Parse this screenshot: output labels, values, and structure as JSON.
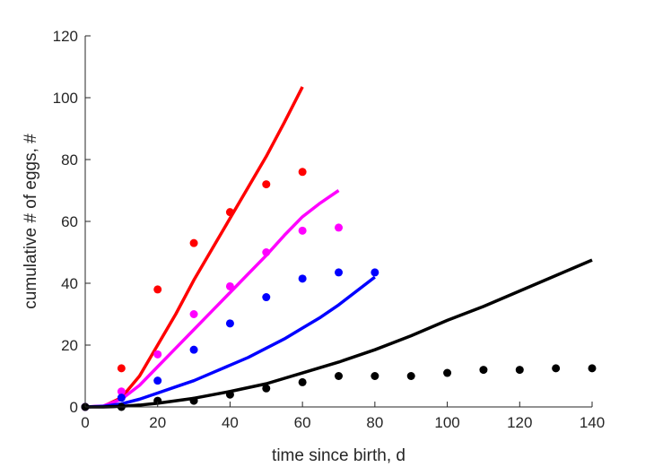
{
  "chart_data": {
    "type": "scatter",
    "title": "",
    "xlabel": "time since birth, d",
    "ylabel": "cumulative # of eggs, #",
    "xlim": [
      0,
      140
    ],
    "ylim": [
      0,
      120
    ],
    "xticks": [
      0,
      20,
      40,
      60,
      80,
      100,
      120,
      140
    ],
    "yticks": [
      0,
      20,
      40,
      60,
      80,
      100,
      120
    ],
    "grid": false,
    "legend": "none",
    "series": [
      {
        "color": "#ff0000",
        "points": [
          [
            0,
            0
          ],
          [
            10,
            12.5
          ],
          [
            20,
            38
          ],
          [
            30,
            53
          ],
          [
            40,
            63
          ],
          [
            50,
            72
          ],
          [
            60,
            76
          ]
        ],
        "curve": [
          [
            0,
            0
          ],
          [
            5,
            0.2
          ],
          [
            10,
            3
          ],
          [
            15,
            10
          ],
          [
            20,
            20
          ],
          [
            25,
            30
          ],
          [
            30,
            41
          ],
          [
            35,
            51
          ],
          [
            40,
            61
          ],
          [
            45,
            71
          ],
          [
            50,
            81
          ],
          [
            55,
            92
          ],
          [
            60,
            103.5
          ]
        ]
      },
      {
        "color": "#ff00ff",
        "points": [
          [
            0,
            0
          ],
          [
            10,
            5
          ],
          [
            20,
            17
          ],
          [
            30,
            30
          ],
          [
            40,
            39
          ],
          [
            50,
            50
          ],
          [
            60,
            57
          ],
          [
            70,
            58
          ]
        ],
        "curve": [
          [
            0,
            0
          ],
          [
            5,
            0.3
          ],
          [
            10,
            2.5
          ],
          [
            15,
            7
          ],
          [
            20,
            13
          ],
          [
            25,
            19
          ],
          [
            30,
            25
          ],
          [
            35,
            31
          ],
          [
            40,
            37
          ],
          [
            45,
            43
          ],
          [
            50,
            49
          ],
          [
            55,
            55.5
          ],
          [
            60,
            61.5
          ],
          [
            65,
            66
          ],
          [
            70,
            70
          ]
        ]
      },
      {
        "color": "#0000ff",
        "points": [
          [
            0,
            0
          ],
          [
            10,
            3
          ],
          [
            20,
            8.5
          ],
          [
            30,
            18.5
          ],
          [
            40,
            27
          ],
          [
            50,
            35.5
          ],
          [
            60,
            41.5
          ],
          [
            70,
            43.5
          ],
          [
            80,
            43.5
          ]
        ],
        "curve": [
          [
            0,
            0
          ],
          [
            5,
            0.2
          ],
          [
            10,
            1
          ],
          [
            15,
            2.5
          ],
          [
            20,
            4.5
          ],
          [
            25,
            6.5
          ],
          [
            30,
            8.5
          ],
          [
            35,
            11
          ],
          [
            40,
            13.5
          ],
          [
            45,
            16
          ],
          [
            50,
            19
          ],
          [
            55,
            22
          ],
          [
            60,
            25.5
          ],
          [
            65,
            29
          ],
          [
            70,
            33
          ],
          [
            75,
            37.5
          ],
          [
            80,
            42
          ]
        ]
      },
      {
        "color": "#000000",
        "points": [
          [
            0,
            0
          ],
          [
            10,
            0
          ],
          [
            20,
            2
          ],
          [
            30,
            2
          ],
          [
            40,
            4
          ],
          [
            50,
            6
          ],
          [
            60,
            8
          ],
          [
            70,
            10
          ],
          [
            80,
            10
          ],
          [
            90,
            10
          ],
          [
            100,
            11
          ],
          [
            110,
            12
          ],
          [
            120,
            12
          ],
          [
            130,
            12.5
          ],
          [
            140,
            12.5
          ]
        ],
        "curve": [
          [
            0,
            0
          ],
          [
            5,
            0
          ],
          [
            10,
            0.2
          ],
          [
            15,
            0.6
          ],
          [
            20,
            1.2
          ],
          [
            30,
            2.8
          ],
          [
            40,
            5
          ],
          [
            50,
            7.5
          ],
          [
            60,
            11
          ],
          [
            70,
            14.5
          ],
          [
            80,
            18.5
          ],
          [
            90,
            23
          ],
          [
            100,
            28
          ],
          [
            110,
            32.5
          ],
          [
            120,
            37.5
          ],
          [
            130,
            42.5
          ],
          [
            140,
            47.5
          ]
        ]
      }
    ]
  }
}
